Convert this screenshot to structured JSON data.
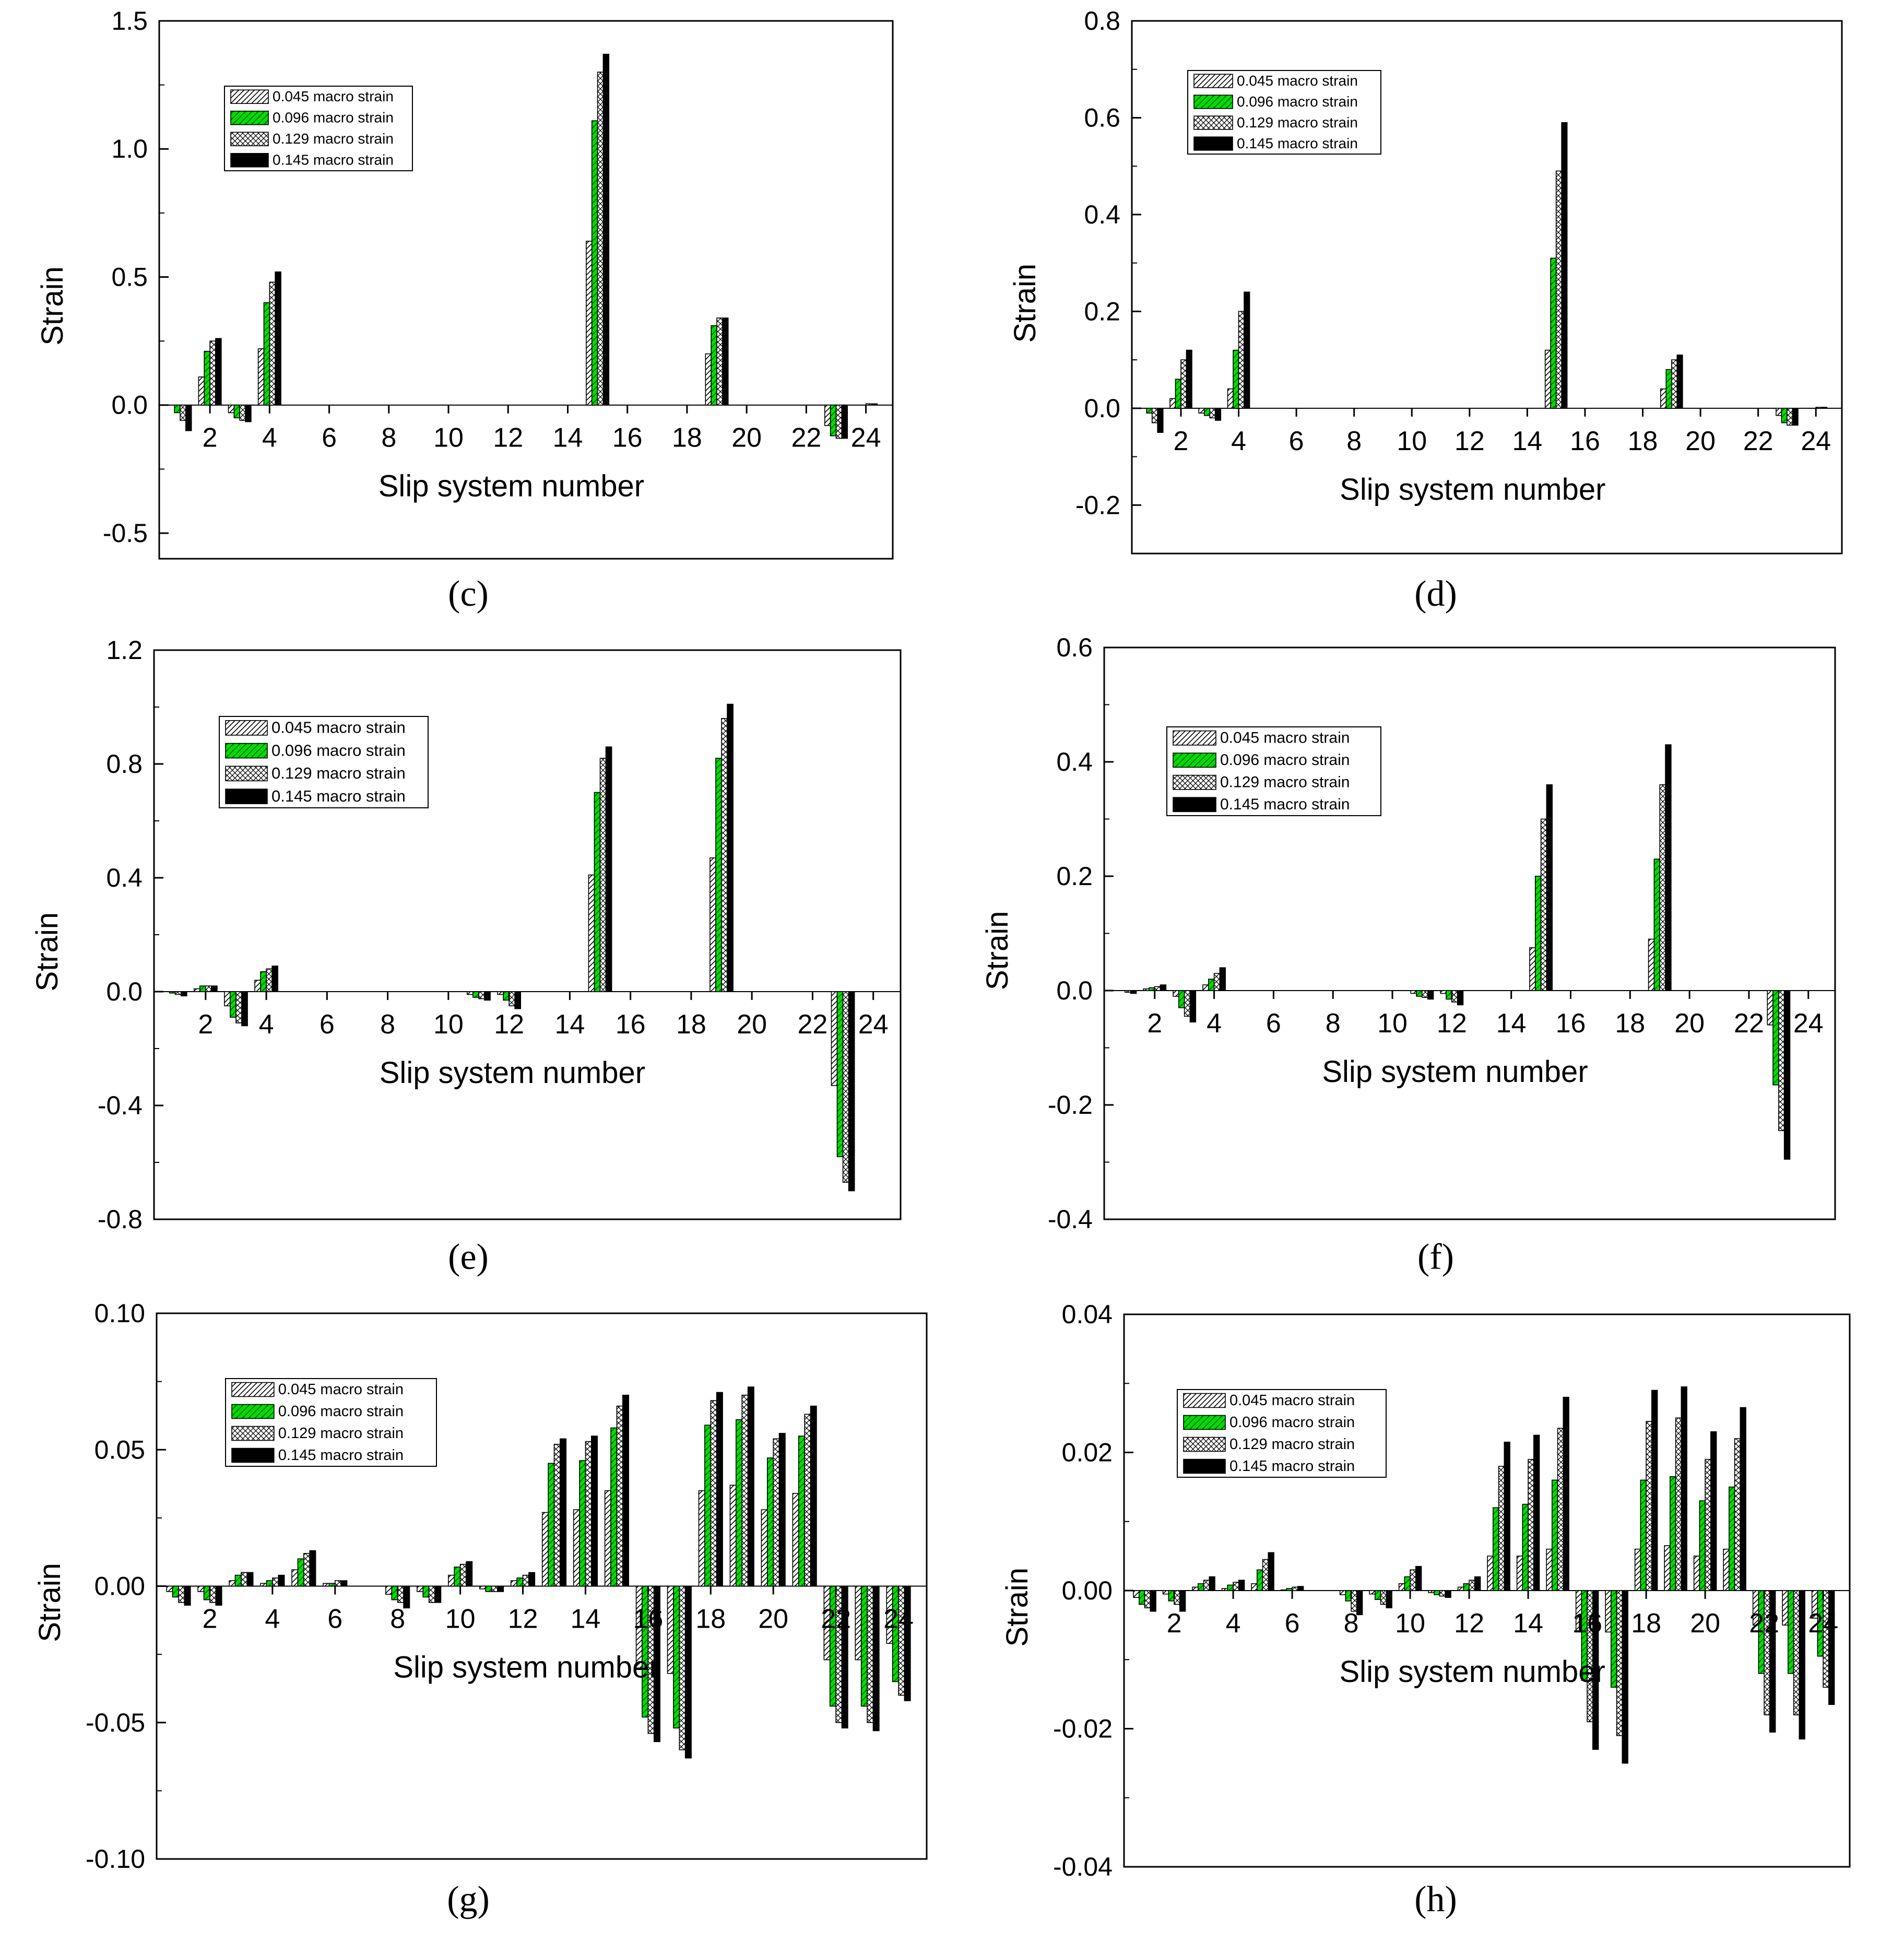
{
  "figure": {
    "series_names": [
      "0.045 macro strain",
      "0.096 macro strain",
      "0.129 macro strain",
      "0.145 macro strain"
    ],
    "series_styles": [
      {
        "pattern": "hatch",
        "color": "#ffffff"
      },
      {
        "pattern": "hatch-green",
        "color": "#00dd00"
      },
      {
        "pattern": "cross",
        "color": "#ffffff"
      },
      {
        "pattern": "solid",
        "color": "#000000"
      }
    ]
  },
  "chart_data": [
    {
      "id": "c",
      "caption": "(c)",
      "type": "bar",
      "title": "",
      "xlabel": "Slip system number",
      "ylabel": "Strain",
      "ylim": [
        -0.6,
        1.5
      ],
      "yticks": [
        -0.5,
        0.0,
        0.5,
        1.0,
        1.5
      ],
      "ytick_labels": [
        "-0.5",
        "0.0",
        "0.5",
        "1.0",
        "1.5"
      ],
      "xticks": [
        2,
        4,
        6,
        8,
        10,
        12,
        14,
        16,
        18,
        20,
        22,
        24
      ],
      "legend_position": "top-left",
      "series": [
        {
          "name": "0.045 macro strain",
          "values": [
            0,
            0.11,
            -0.03,
            0.22,
            0,
            0,
            0,
            0,
            0,
            0,
            0,
            0,
            0,
            0,
            0.64,
            0,
            0,
            0,
            0.2,
            0,
            0,
            0,
            -0.08,
            0
          ]
        },
        {
          "name": "0.096 macro strain",
          "values": [
            -0.03,
            0.21,
            -0.05,
            0.4,
            0,
            0,
            0,
            0,
            0,
            0,
            0,
            0,
            0,
            0,
            1.11,
            0,
            0,
            0,
            0.31,
            0,
            0,
            0,
            -0.12,
            0
          ]
        },
        {
          "name": "0.129 macro strain",
          "values": [
            -0.06,
            0.25,
            -0.06,
            0.48,
            0,
            0,
            0,
            0,
            0,
            0,
            0,
            0,
            0,
            0,
            1.3,
            0,
            0,
            0,
            0.34,
            0,
            0,
            0,
            -0.13,
            0.005
          ]
        },
        {
          "name": "0.145 macro strain",
          "values": [
            -0.1,
            0.26,
            -0.065,
            0.52,
            0,
            0,
            0,
            0,
            0,
            0,
            0,
            0,
            0,
            0,
            1.37,
            0,
            0,
            0,
            0.34,
            0,
            0,
            0,
            -0.13,
            0.005
          ]
        }
      ]
    },
    {
      "id": "d",
      "caption": "(d)",
      "type": "bar",
      "title": "",
      "xlabel": "Slip system number",
      "ylabel": "Strain",
      "ylim": [
        -0.3,
        0.8
      ],
      "yticks": [
        -0.2,
        0.0,
        0.2,
        0.4,
        0.6,
        0.8
      ],
      "ytick_labels": [
        "-0.2",
        "0.0",
        "0.2",
        "0.4",
        "0.6",
        "0.8"
      ],
      "xticks": [
        2,
        4,
        6,
        8,
        10,
        12,
        14,
        16,
        18,
        20,
        22,
        24
      ],
      "legend_position": "top-left",
      "series": [
        {
          "name": "0.045 macro strain",
          "values": [
            0,
            0.02,
            -0.01,
            0.04,
            0,
            0,
            0,
            0,
            0,
            0,
            0,
            0,
            0,
            0,
            0.12,
            0,
            0,
            0,
            0.04,
            0,
            0,
            0,
            -0.015,
            0
          ]
        },
        {
          "name": "0.096 macro strain",
          "values": [
            -0.01,
            0.06,
            -0.015,
            0.12,
            0,
            0,
            0,
            0,
            0,
            0,
            0,
            0,
            0,
            0,
            0.31,
            0,
            0,
            0,
            0.08,
            0,
            0,
            0,
            -0.03,
            0
          ]
        },
        {
          "name": "0.129 macro strain",
          "values": [
            -0.03,
            0.1,
            -0.02,
            0.2,
            0,
            0,
            0,
            0,
            0,
            0,
            0,
            0,
            0,
            0,
            0.49,
            0,
            0,
            0,
            0.1,
            0,
            0,
            0,
            -0.035,
            0.002
          ]
        },
        {
          "name": "0.145 macro strain",
          "values": [
            -0.05,
            0.12,
            -0.025,
            0.24,
            0,
            0,
            0,
            0,
            0,
            0,
            0,
            0,
            0,
            0,
            0.59,
            0,
            0,
            0,
            0.11,
            0,
            0,
            0,
            -0.035,
            0.002
          ]
        }
      ]
    },
    {
      "id": "e",
      "caption": "(e)",
      "type": "bar",
      "title": "",
      "xlabel": "Slip system number",
      "ylabel": "Strain",
      "ylim": [
        -0.8,
        1.2
      ],
      "yticks": [
        -0.8,
        -0.4,
        0.0,
        0.4,
        0.8,
        1.2
      ],
      "ytick_labels": [
        "-0.8",
        "-0.4",
        "0.0",
        "0.4",
        "0.8",
        "1.2"
      ],
      "xticks": [
        2,
        4,
        6,
        8,
        10,
        12,
        14,
        16,
        18,
        20,
        22,
        24
      ],
      "legend_position": "top-left",
      "series": [
        {
          "name": "0.045 macro strain",
          "values": [
            0,
            0.01,
            -0.05,
            0.04,
            0,
            0,
            0,
            0,
            0,
            0,
            -0.01,
            -0.01,
            0,
            0,
            0.41,
            0,
            0,
            0,
            0.47,
            0,
            0,
            0,
            -0.33,
            0
          ]
        },
        {
          "name": "0.096 macro strain",
          "values": [
            -0.005,
            0.02,
            -0.09,
            0.07,
            0,
            0,
            0,
            0,
            0,
            0,
            -0.02,
            -0.03,
            0,
            0,
            0.7,
            0,
            0,
            0,
            0.82,
            0,
            0,
            0,
            -0.58,
            0
          ]
        },
        {
          "name": "0.129 macro strain",
          "values": [
            -0.01,
            0.02,
            -0.11,
            0.08,
            0,
            0,
            0,
            0,
            0,
            0,
            -0.025,
            -0.05,
            0,
            0,
            0.82,
            0,
            0,
            0,
            0.96,
            0,
            0,
            0,
            -0.67,
            0
          ]
        },
        {
          "name": "0.145 macro strain",
          "values": [
            -0.015,
            0.02,
            -0.12,
            0.09,
            0,
            0,
            0,
            0,
            0,
            0,
            -0.03,
            -0.06,
            0,
            0,
            0.86,
            0,
            0,
            0,
            1.01,
            0,
            0,
            0,
            -0.7,
            0
          ]
        }
      ]
    },
    {
      "id": "f",
      "caption": "(f)",
      "type": "bar",
      "title": "",
      "xlabel": "Slip system number",
      "ylabel": "Strain",
      "ylim": [
        -0.4,
        0.6
      ],
      "yticks": [
        -0.4,
        -0.2,
        0.0,
        0.2,
        0.4,
        0.6
      ],
      "ytick_labels": [
        "-0.4",
        "-0.2",
        "0.0",
        "0.2",
        "0.4",
        "0.6"
      ],
      "xticks": [
        2,
        4,
        6,
        8,
        10,
        12,
        14,
        16,
        18,
        20,
        22,
        24
      ],
      "legend_position": "top-left",
      "series": [
        {
          "name": "0.045 macro strain",
          "values": [
            0,
            0.003,
            -0.01,
            0.01,
            0,
            0,
            0,
            0,
            0,
            0,
            -0.005,
            -0.005,
            0,
            0,
            0.075,
            0,
            0,
            0,
            0.09,
            0,
            0,
            0,
            -0.06,
            0
          ]
        },
        {
          "name": "0.096 macro strain",
          "values": [
            0,
            0.005,
            -0.03,
            0.02,
            0,
            0,
            0,
            0,
            0,
            0,
            -0.01,
            -0.015,
            0,
            0,
            0.2,
            0,
            0,
            0,
            0.23,
            0,
            0,
            0,
            -0.165,
            0
          ]
        },
        {
          "name": "0.129 macro strain",
          "values": [
            -0.003,
            0.007,
            -0.045,
            0.03,
            0,
            0,
            0,
            0,
            0,
            0,
            -0.012,
            -0.02,
            0,
            0,
            0.3,
            0,
            0,
            0,
            0.36,
            0,
            0,
            0,
            -0.245,
            0
          ]
        },
        {
          "name": "0.145 macro strain",
          "values": [
            -0.005,
            0.01,
            -0.055,
            0.04,
            0,
            0,
            0,
            0,
            0,
            0,
            -0.015,
            -0.025,
            0,
            0,
            0.36,
            0,
            0,
            0,
            0.43,
            0,
            0,
            0,
            -0.295,
            0
          ]
        }
      ]
    },
    {
      "id": "g",
      "caption": "(g)",
      "type": "bar",
      "title": "",
      "xlabel": "Slip system number",
      "ylabel": "Strain",
      "ylim": [
        -0.1,
        0.1
      ],
      "yticks": [
        -0.1,
        -0.05,
        0.0,
        0.05,
        0.1
      ],
      "ytick_labels": [
        "-0.10",
        "-0.05",
        "0.00",
        "0.05",
        "0.10"
      ],
      "xticks": [
        2,
        4,
        6,
        8,
        10,
        12,
        14,
        16,
        18,
        20,
        22,
        24
      ],
      "legend_position": "top-left",
      "series": [
        {
          "name": "0.045 macro strain",
          "values": [
            -0.002,
            -0.002,
            0.002,
            0.001,
            0.006,
            0.001,
            0,
            -0.003,
            -0.002,
            0.004,
            -0.001,
            0.002,
            0.027,
            0.028,
            0.035,
            -0.03,
            -0.032,
            0.035,
            0.037,
            0.028,
            0.034,
            -0.027,
            -0.027,
            -0.021
          ]
        },
        {
          "name": "0.096 macro strain",
          "values": [
            -0.004,
            -0.005,
            0.004,
            0.002,
            0.01,
            0.001,
            0,
            -0.005,
            -0.004,
            0.007,
            -0.002,
            0.003,
            0.045,
            0.046,
            0.058,
            -0.048,
            -0.052,
            0.059,
            0.061,
            0.047,
            0.055,
            -0.044,
            -0.044,
            -0.035
          ]
        },
        {
          "name": "0.129 macro strain",
          "values": [
            -0.006,
            -0.006,
            0.005,
            0.003,
            0.012,
            0.002,
            0,
            -0.006,
            -0.006,
            0.008,
            -0.002,
            0.004,
            0.052,
            0.053,
            0.066,
            -0.054,
            -0.06,
            0.068,
            0.07,
            0.054,
            0.063,
            -0.05,
            -0.05,
            -0.04
          ]
        },
        {
          "name": "0.145 macro strain",
          "values": [
            -0.007,
            -0.007,
            0.005,
            0.004,
            0.013,
            0.002,
            0,
            -0.008,
            -0.006,
            0.009,
            -0.002,
            0.005,
            0.054,
            0.055,
            0.07,
            -0.057,
            -0.063,
            0.071,
            0.073,
            0.056,
            0.066,
            -0.052,
            -0.053,
            -0.042
          ]
        }
      ]
    },
    {
      "id": "h",
      "caption": "(h)",
      "type": "bar",
      "title": "",
      "xlabel": "Slip system number",
      "ylabel": "Strain",
      "ylim": [
        -0.04,
        0.04
      ],
      "yticks": [
        -0.04,
        -0.02,
        0.0,
        0.02,
        0.04
      ],
      "ytick_labels": [
        "-0.04",
        "-0.02",
        "0.00",
        "0.02",
        "0.04"
      ],
      "xticks": [
        2,
        4,
        6,
        8,
        10,
        12,
        14,
        16,
        18,
        20,
        22,
        24
      ],
      "legend_position": "top-left",
      "series": [
        {
          "name": "0.045 macro strain",
          "values": [
            -0.001,
            -0.0005,
            0.0005,
            0.0003,
            0.001,
            0.0001,
            0,
            -0.0006,
            -0.0005,
            0.001,
            -0.0003,
            0.0005,
            0.005,
            0.005,
            0.006,
            -0.006,
            -0.006,
            0.006,
            0.0065,
            0.005,
            0.006,
            -0.005,
            -0.005,
            -0.004
          ]
        },
        {
          "name": "0.096 macro strain",
          "values": [
            -0.002,
            -0.0015,
            0.001,
            0.0008,
            0.003,
            0.0003,
            0,
            -0.0015,
            -0.0013,
            0.002,
            -0.0006,
            0.001,
            0.012,
            0.0125,
            0.016,
            -0.013,
            -0.014,
            0.016,
            0.0165,
            0.013,
            0.015,
            -0.012,
            -0.012,
            -0.0095
          ]
        },
        {
          "name": "0.129 macro strain",
          "values": [
            -0.0025,
            -0.002,
            0.0015,
            0.0012,
            0.0045,
            0.0005,
            0,
            -0.003,
            -0.002,
            0.003,
            -0.0008,
            0.0015,
            0.018,
            0.019,
            0.0235,
            -0.019,
            -0.021,
            0.0245,
            0.025,
            0.019,
            0.022,
            -0.018,
            -0.018,
            -0.014
          ]
        },
        {
          "name": "0.145 macro strain",
          "values": [
            -0.003,
            -0.003,
            0.002,
            0.0015,
            0.0055,
            0.0006,
            0,
            -0.0035,
            -0.0025,
            0.0035,
            -0.001,
            0.002,
            0.0215,
            0.0225,
            0.028,
            -0.023,
            -0.025,
            0.029,
            0.0295,
            0.023,
            0.0265,
            -0.0205,
            -0.0215,
            -0.0165
          ]
        }
      ]
    }
  ]
}
